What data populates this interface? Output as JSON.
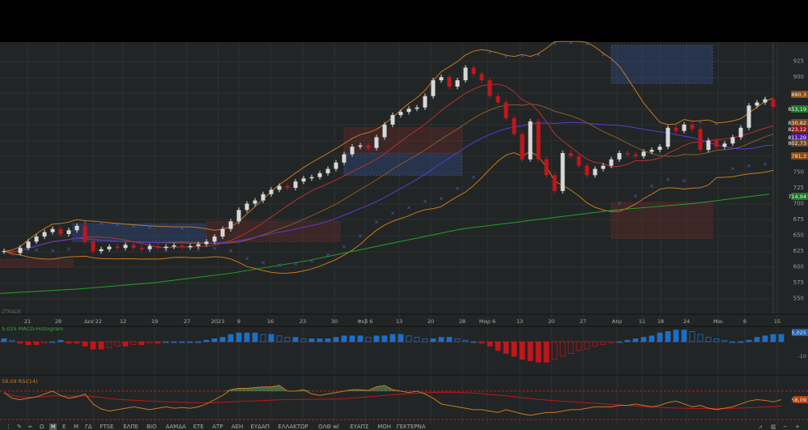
{
  "indicator_labels": {
    "macd": "5,025 MACD-Histogram",
    "rsi": "58,09 RSI(14)",
    "ztrade": "ZTRADE"
  },
  "chart_data": {
    "type": "candlestick",
    "price_axis": {
      "range": [
        540,
        950
      ],
      "ticks": [
        925,
        900,
        750,
        725,
        700,
        675,
        650,
        625,
        600,
        575,
        550
      ]
    },
    "price_labels": [
      {
        "value": "880,3",
        "color": "#8a4a12"
      },
      {
        "value": "853,19",
        "color": "#1f7a2a"
      },
      {
        "value": "830,82",
        "color": "#7a4a1e"
      },
      {
        "value": "823,12",
        "color": "#8a1c1c"
      },
      {
        "value": "811,29",
        "color": "#4a1fa8"
      },
      {
        "value": "802,73",
        "color": "#6a4a2a"
      },
      {
        "value": "781,3",
        "color": "#8a4a12"
      },
      {
        "value": "714,94",
        "color": "#1f7a2a"
      }
    ],
    "date_ticks": [
      "21",
      "28",
      "Δεκ'22",
      "12",
      "19",
      "27",
      "2023",
      "9",
      "16",
      "23",
      "30",
      "Φεβ 6",
      "13",
      "20",
      "28",
      "Μαρ 6",
      "13",
      "20",
      "27",
      "Απρ",
      "11",
      "18",
      "24",
      "Μαι",
      "8",
      "15"
    ],
    "close": [
      625,
      622,
      630,
      640,
      648,
      655,
      660,
      652,
      658,
      665,
      640,
      625,
      628,
      632,
      630,
      635,
      630,
      628,
      633,
      630,
      632,
      634,
      631,
      633,
      636,
      640,
      648,
      660,
      672,
      690,
      700,
      705,
      715,
      722,
      728,
      725,
      735,
      740,
      742,
      748,
      755,
      765,
      778,
      790,
      792,
      788,
      805,
      825,
      840,
      845,
      850,
      852,
      870,
      895,
      900,
      885,
      895,
      915,
      905,
      895,
      870,
      860,
      835,
      810,
      770,
      830,
      770,
      745,
      720,
      780,
      775,
      760,
      745,
      755,
      760,
      770,
      780,
      778,
      775,
      782,
      785,
      790,
      820,
      815,
      825,
      818,
      785,
      800,
      790,
      795,
      805,
      820,
      855,
      860,
      865,
      853
    ],
    "long_ma": [
      558,
      565,
      575,
      590,
      610,
      635,
      660,
      675,
      690,
      700,
      715
    ],
    "zones": [
      {
        "from": 640,
        "to": 668,
        "type": "supply"
      },
      {
        "from": 745,
        "to": 780,
        "type": "supply"
      },
      {
        "from": 890,
        "to": 950,
        "type": "supply"
      },
      {
        "from": 600,
        "to": 612,
        "type": "demand"
      },
      {
        "from": 640,
        "to": 672,
        "type": "demand"
      },
      {
        "from": 780,
        "to": 820,
        "type": "demand"
      },
      {
        "from": 645,
        "to": 702,
        "type": "demand"
      }
    ],
    "macd": {
      "last": "5,025",
      "axis_label": "-10",
      "values": [
        2,
        1,
        -1,
        -2,
        -2,
        -1,
        0,
        1,
        -1,
        -1,
        -3,
        -5,
        -5,
        -4,
        -3,
        -3,
        -2,
        -2,
        -1,
        -1,
        0,
        0,
        0,
        0,
        0,
        1,
        2,
        3,
        5,
        6,
        6,
        6,
        5,
        5,
        4,
        3,
        3,
        2,
        2,
        2,
        2,
        3,
        4,
        4,
        4,
        3,
        4,
        4,
        5,
        5,
        4,
        3,
        2,
        2,
        3,
        3,
        2,
        1,
        0,
        -1,
        -3,
        -6,
        -8,
        -10,
        -12,
        -13,
        -14,
        -14,
        -12,
        -10,
        -8,
        -6,
        -5,
        -3,
        -2,
        -1,
        0,
        1,
        2,
        3,
        4,
        6,
        7,
        8,
        8,
        7,
        5,
        3,
        2,
        1,
        0,
        0,
        1,
        3,
        4,
        5,
        5
      ]
    },
    "rsi": {
      "last": "58,09",
      "levels": [
        70,
        30
      ],
      "values": [
        68,
        60,
        58,
        60,
        62,
        66,
        70,
        64,
        60,
        62,
        66,
        52,
        45,
        42,
        44,
        46,
        48,
        46,
        44,
        46,
        48,
        46,
        47,
        46,
        48,
        52,
        58,
        64,
        72,
        74,
        74,
        75,
        76,
        76,
        78,
        70,
        70,
        72,
        66,
        64,
        66,
        68,
        70,
        72,
        72,
        71,
        76,
        78,
        72,
        70,
        68,
        70,
        66,
        60,
        52,
        50,
        48,
        46,
        44,
        44,
        42,
        40,
        44,
        41,
        38,
        36,
        38,
        40,
        40,
        42,
        44,
        44,
        46,
        48,
        48,
        48,
        50,
        50,
        52,
        50,
        48,
        50,
        54,
        56,
        52,
        48,
        50,
        46,
        44,
        46,
        48,
        52,
        56,
        58,
        57,
        55,
        58
      ]
    },
    "colors": {
      "up": "#d8d8d8",
      "down": "#c0161c",
      "bb": "#c7781f",
      "ma_fast": "#b83030",
      "ma_mid": "#5a3bd0",
      "ma_long": "#22a02a",
      "sar": "#4b60c8",
      "macd_pos": "#1e6fc4",
      "macd_neg": "#c0161c",
      "rsi": "#c7781f"
    }
  },
  "toolbar": {
    "items": [
      "⋮",
      "✎",
      "═",
      "Ω",
      "H",
      "E",
      "M",
      "ΓΔ",
      "FTSE",
      "ΕΛΠΕ",
      "ΒΙΟ",
      "ΑΑΜΔΑ",
      "ΕΤΕ",
      "ΑΤΡ",
      "ΑΕΗ",
      "ΕΥΔΑΠ",
      "ΕΛΛΑΚΤΩΡ",
      "ΟΛΘ wl",
      "ΕΥΑΠΣ",
      "ΜΟΗ",
      "ΓΕΚΤΕΡΝΑ"
    ],
    "active": "H",
    "right_icons": [
      "chart-type-icon",
      "bar-icon",
      "zoom-out-icon",
      "zoom-in-icon"
    ]
  }
}
